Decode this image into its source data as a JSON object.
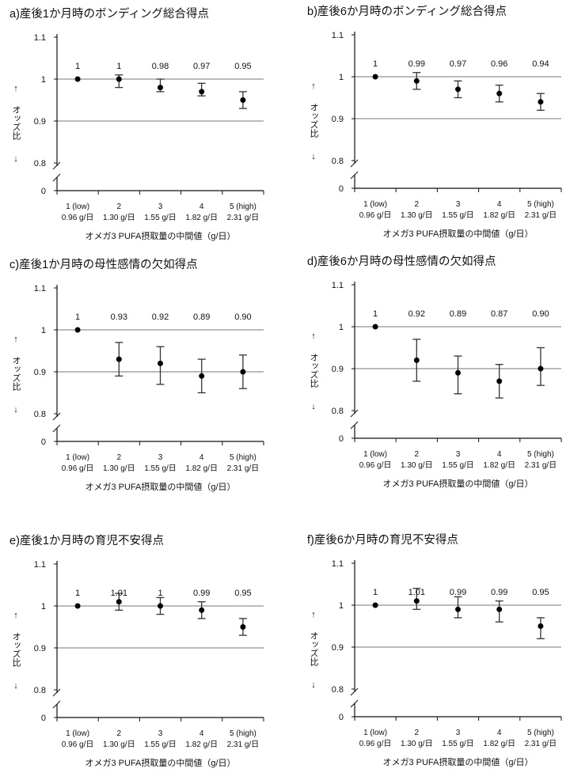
{
  "chart_data": [
    {
      "type": "scatter",
      "title": "a)産後1か月時のボンディング総合得点",
      "ylabel": "オッズ比",
      "ylabel_arrows": [
        "↑",
        "↓"
      ],
      "xlabel": "オメガ3 PUFA摂取量の中間値（g/日）",
      "yticks": [
        "1.1",
        "1",
        "0.9",
        "0.8",
        "0"
      ],
      "ylim": [
        0.8,
        1.1
      ],
      "axis_break": true,
      "categories": [
        [
          "1 (low)",
          "0.96 g/日"
        ],
        [
          "2",
          "1.30 g/日"
        ],
        [
          "3",
          "1.55 g/日"
        ],
        [
          "4",
          "1.82 g/日"
        ],
        [
          "5 (high)",
          "2.31 g/日"
        ]
      ],
      "values": [
        1,
        1,
        0.98,
        0.97,
        0.95
      ],
      "labels": [
        "1",
        "1",
        "0.98",
        "0.97",
        "0.95"
      ],
      "ci_low": [
        1,
        0.98,
        0.97,
        0.96,
        0.93
      ],
      "ci_high": [
        1,
        1.01,
        1.0,
        0.99,
        0.97
      ]
    },
    {
      "type": "scatter",
      "title": "b)産後6か月時のボンディング総合得点",
      "ylabel": "オッズ比",
      "ylabel_arrows": [
        "↑",
        "↓"
      ],
      "xlabel": "オメガ3 PUFA摂取量の中間値（g/日）",
      "yticks": [
        "1.1",
        "1",
        "0.9",
        "0.8",
        "0"
      ],
      "ylim": [
        0.8,
        1.1
      ],
      "axis_break": true,
      "categories": [
        [
          "1 (low)",
          "0.96 g/日"
        ],
        [
          "2",
          "1.30 g/日"
        ],
        [
          "3",
          "1.55 g/日"
        ],
        [
          "4",
          "1.82 g/日"
        ],
        [
          "5 (high)",
          "2.31 g/日"
        ]
      ],
      "values": [
        1,
        0.99,
        0.97,
        0.96,
        0.94
      ],
      "labels": [
        "1",
        "0.99",
        "0.97",
        "0.96",
        "0.94"
      ],
      "ci_low": [
        1,
        0.97,
        0.95,
        0.94,
        0.92
      ],
      "ci_high": [
        1,
        1.01,
        0.99,
        0.98,
        0.96
      ]
    },
    {
      "type": "scatter",
      "title": "c)産後1か月時の母性感情の欠如得点",
      "ylabel": "オッズ比",
      "ylabel_arrows": [
        "↑",
        "↓"
      ],
      "xlabel": "オメガ3 PUFA摂取量の中間値（g/日）",
      "yticks": [
        "1.1",
        "1",
        "0.9",
        "0.8",
        "0"
      ],
      "ylim": [
        0.8,
        1.1
      ],
      "axis_break": true,
      "categories": [
        [
          "1 (low)",
          "0.96 g/日"
        ],
        [
          "2",
          "1.30 g/日"
        ],
        [
          "3",
          "1.55 g/日"
        ],
        [
          "4",
          "1.82 g/日"
        ],
        [
          "5 (high)",
          "2.31 g/日"
        ]
      ],
      "values": [
        1,
        0.93,
        0.92,
        0.89,
        0.9
      ],
      "labels": [
        "1",
        "0.93",
        "0.92",
        "0.89",
        "0.90"
      ],
      "ci_low": [
        1,
        0.89,
        0.87,
        0.85,
        0.86
      ],
      "ci_high": [
        1,
        0.97,
        0.96,
        0.93,
        0.94
      ]
    },
    {
      "type": "scatter",
      "title": "d)産後6か月時の母性感情の欠如得点",
      "ylabel": "オッズ比",
      "ylabel_arrows": [
        "↑",
        "↓"
      ],
      "xlabel": "オメガ3 PUFA摂取量の中間値（g/日）",
      "yticks": [
        "1.1",
        "1",
        "0.9",
        "0.8",
        "0"
      ],
      "ylim": [
        0.8,
        1.1
      ],
      "axis_break": true,
      "categories": [
        [
          "1 (low)",
          "0.96 g/日"
        ],
        [
          "2",
          "1.30 g/日"
        ],
        [
          "3",
          "1.55 g/日"
        ],
        [
          "4",
          "1.82 g/日"
        ],
        [
          "5 (high)",
          "2.31 g/日"
        ]
      ],
      "values": [
        1,
        0.92,
        0.89,
        0.87,
        0.9
      ],
      "labels": [
        "1",
        "0.92",
        "0.89",
        "0.87",
        "0.90"
      ],
      "ci_low": [
        1,
        0.87,
        0.84,
        0.83,
        0.86
      ],
      "ci_high": [
        1,
        0.97,
        0.93,
        0.91,
        0.95
      ]
    },
    {
      "type": "scatter",
      "title": "e)産後1か月時の育児不安得点",
      "ylabel": "オッズ比",
      "ylabel_arrows": [
        "↑",
        "↓"
      ],
      "xlabel": "オメガ3 PUFA摂取量の中間値（g/日）",
      "yticks": [
        "1.1",
        "1",
        "0.9",
        "0.8",
        "0"
      ],
      "ylim": [
        0.8,
        1.1
      ],
      "axis_break": true,
      "categories": [
        [
          "1 (low)",
          "0.96 g/日"
        ],
        [
          "2",
          "1.30 g/日"
        ],
        [
          "3",
          "1.55 g/日"
        ],
        [
          "4",
          "1.82 g/日"
        ],
        [
          "5 (high)",
          "2.31 g/日"
        ]
      ],
      "values": [
        1,
        1.01,
        1,
        0.99,
        0.95
      ],
      "labels": [
        "1",
        "1.01",
        "1",
        "0.99",
        "0.95"
      ],
      "ci_low": [
        1,
        0.99,
        0.98,
        0.97,
        0.93
      ],
      "ci_high": [
        1,
        1.03,
        1.02,
        1.01,
        0.97
      ]
    },
    {
      "type": "scatter",
      "title": "f)産後6か月時の育児不安得点",
      "ylabel": "オッズ比",
      "ylabel_arrows": [
        "↑",
        "↓"
      ],
      "xlabel": "オメガ3 PUFA摂取量の中間値（g/日）",
      "yticks": [
        "1.1",
        "1",
        "0.9",
        "0.8",
        "0"
      ],
      "ylim": [
        0.8,
        1.1
      ],
      "axis_break": true,
      "categories": [
        [
          "1 (low)",
          "0.96 g/日"
        ],
        [
          "2",
          "1.30 g/日"
        ],
        [
          "3",
          "1.55 g/日"
        ],
        [
          "4",
          "1.82 g/日"
        ],
        [
          "5 (high)",
          "2.31 g/日"
        ]
      ],
      "values": [
        1,
        1.01,
        0.99,
        0.99,
        0.95
      ],
      "labels": [
        "1",
        "1.01",
        "0.99",
        "0.99",
        "0.95"
      ],
      "ci_low": [
        1,
        0.99,
        0.97,
        0.96,
        0.92
      ],
      "ci_high": [
        1,
        1.04,
        1.02,
        1.01,
        0.97
      ]
    }
  ]
}
